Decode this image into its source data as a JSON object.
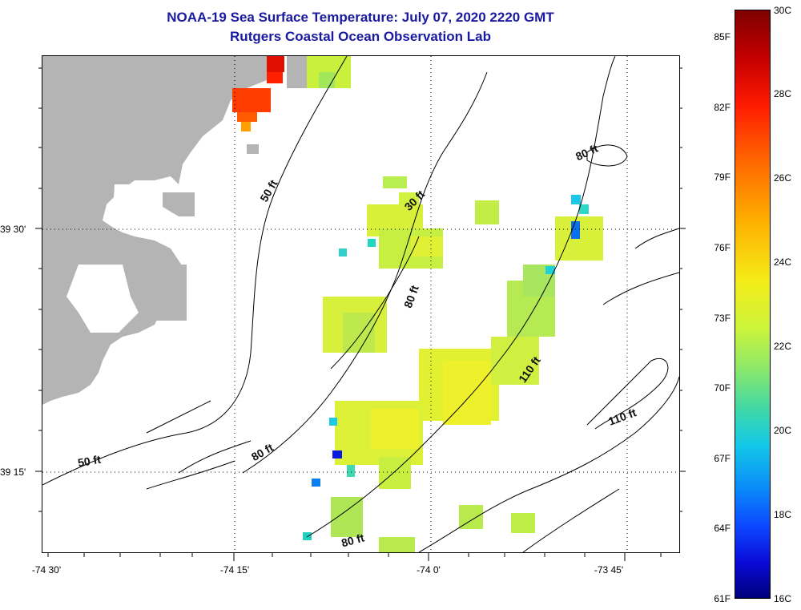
{
  "title": {
    "line1": "NOAA-19 Sea Surface Temperature:  July 07, 2020 2220 GMT",
    "line2": "Rutgers Coastal Ocean Observation Lab"
  },
  "latitude_labels": [
    "39 30'",
    "39 15'"
  ],
  "longitude_labels": [
    "-74 30'",
    "-74 15'",
    "-74 0'",
    "-73 45'"
  ],
  "colorbar": {
    "fahrenheit": [
      "85F",
      "82F",
      "79F",
      "76F",
      "73F",
      "70F",
      "67F",
      "64F",
      "61F"
    ],
    "celsius": [
      "30C",
      "28C",
      "26C",
      "24C",
      "22C",
      "20C",
      "18C",
      "16C"
    ],
    "colors": [
      "#7f0000",
      "#ff1a00",
      "#ffb000",
      "#f4ec18",
      "#8ce86a",
      "#13c8e8",
      "#0c46ff",
      "#00007a"
    ]
  },
  "depth_contour_labels": [
    "50 ft",
    "50 ft",
    "80 ft",
    "30 ft",
    "80 ft",
    "80 ft",
    "110 ft",
    "110 ft",
    "80 ft"
  ],
  "colors": {
    "land": "#b4b4b4",
    "title": "#1a1aa0",
    "background": "#ffffff"
  }
}
